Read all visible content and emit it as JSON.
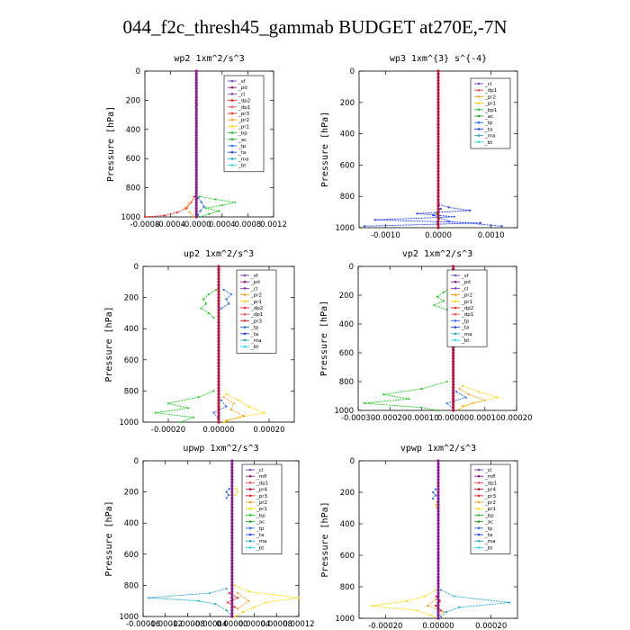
{
  "title": "044_f2c_thresh45_gammab  BUDGET at270E,-7N",
  "chart_data": [
    {
      "type": "line",
      "title": "wp2   1xm^2/s^3",
      "ylabel": "Pressure [hPa]",
      "xlim": [
        -0.0008,
        0.0012
      ],
      "ylim": [
        0,
        1000
      ],
      "xticks": [
        "-0.0008",
        "-0.0004",
        "-0.0000",
        "0.0004",
        "0.0008",
        "0.0012"
      ],
      "xtick_values": [
        -0.0008,
        -0.0004,
        0,
        0.0004,
        0.0008,
        0.0012
      ],
      "yticks": [
        "0",
        "200",
        "400",
        "600",
        "800",
        "1000"
      ],
      "legend": [
        "_sf",
        "_pd",
        "_cl",
        "_dp2",
        "_dp1",
        "_pr3",
        "_pr2",
        "_pr1",
        "_bp",
        "_ac",
        "_tp",
        "_ta",
        "_ma",
        "_bt"
      ],
      "legend_position": "top-right",
      "series": [
        {
          "name": "_pr3",
          "color": "#ff2020",
          "y": [
            860,
            900,
            940,
            970,
            990,
            1000
          ],
          "x": [
            -3e-05,
            -8e-05,
            -0.00015,
            -0.0003,
            -0.0005,
            -0.0008
          ]
        },
        {
          "name": "_pr1",
          "color": "#22cc22",
          "y": [
            860,
            880,
            900,
            920,
            940,
            960,
            980,
            1000
          ],
          "x": [
            5e-05,
            0.0003,
            0.0006,
            0.0004,
            0.00015,
            0.00035,
            0.0002,
            5e-05
          ]
        },
        {
          "name": "_bp",
          "color": "#ff9f1a",
          "y": [
            880,
            910,
            940,
            970,
            1000
          ],
          "x": [
            -5e-05,
            -0.00012,
            -0.00018,
            -0.0001,
            -4e-05
          ]
        },
        {
          "name": "_tp",
          "color": "#1f6fff",
          "y": [
            870,
            900,
            930,
            960,
            990
          ],
          "x": [
            3e-05,
            8e-05,
            0.00012,
            6e-05,
            2e-05
          ]
        },
        {
          "name": "_dp1",
          "color": "#ff4f4f",
          "y": [
            200,
            215,
            230,
            245,
            260
          ],
          "x": [
            1e-05,
            -1e-05,
            1e-05,
            -1e-05,
            0.0
          ]
        }
      ]
    },
    {
      "type": "line",
      "title": "wp3   1xm^{3} s^{-4}",
      "ylabel": "Pressure [hPa]",
      "xlim": [
        -0.0015,
        0.0015
      ],
      "ylim": [
        0,
        1000
      ],
      "xticks": [
        "-0.0010",
        "0.0000",
        "0.0010"
      ],
      "xtick_values": [
        -0.001,
        0,
        0.001
      ],
      "yticks": [
        "0",
        "200",
        "400",
        "600",
        "800",
        "1000"
      ],
      "legend": [
        "_cl",
        "_dp1",
        "_pr2",
        "_pr1",
        "_bp1",
        "_ac",
        "_tp",
        "_ta",
        "_ma",
        "_bt"
      ],
      "legend_position": "top-right",
      "series": [
        {
          "name": "_tp",
          "color": "#1f3fff",
          "y": [
            850,
            870,
            890,
            910,
            930,
            950,
            970,
            990
          ],
          "x": [
            0.0,
            0.0002,
            0.0006,
            -0.0004,
            0.0003,
            -0.0012,
            0.0008,
            -0.0014
          ]
        },
        {
          "name": "_ta",
          "color": "#2244ff",
          "y": [
            880,
            920,
            960,
            990
          ],
          "x": [
            5e-05,
            -0.0001,
            0.0002,
            0.0012
          ]
        },
        {
          "name": "_bp1",
          "color": "#22cc22",
          "y": [
            880,
            910,
            940,
            970
          ],
          "x": [
            2e-05,
            -3e-05,
            3e-05,
            -2e-05
          ]
        }
      ]
    },
    {
      "type": "line",
      "title": "up2   1xm^2/s^3",
      "ylabel": "Pressure [hPa]",
      "xlim": [
        -0.0003,
        0.0003
      ],
      "ylim": [
        0,
        1000
      ],
      "xticks": [
        "-0.00020",
        "0.00000",
        "0.00020"
      ],
      "xtick_values": [
        -0.0002,
        0,
        0.0002
      ],
      "yticks": [
        "0",
        "200",
        "400",
        "600",
        "800",
        "1000"
      ],
      "legend": [
        "_sf",
        "_pd",
        "_cl",
        "_pr2",
        "_pr1",
        "_dp2",
        "_dp1",
        "_pr3",
        "_tp",
        "_ta",
        "_ma",
        "_bt"
      ],
      "legend_position": "top-right",
      "series": [
        {
          "name": "_dp1",
          "color": "#22cc22",
          "y": [
            150,
            180,
            210,
            240,
            270,
            300,
            330
          ],
          "x": [
            -1e-05,
            -4e-05,
            -6e-05,
            -5e-05,
            -7e-05,
            -4e-05,
            -2e-05
          ]
        },
        {
          "name": "_tp",
          "color": "#1f6fff",
          "y": [
            150,
            180,
            210,
            240,
            270
          ],
          "x": [
            2e-05,
            5e-05,
            3e-05,
            4e-05,
            1e-05
          ]
        },
        {
          "name": "_dp2",
          "color": "#22cc22",
          "y": [
            800,
            840,
            880,
            910,
            940,
            970,
            1000
          ],
          "x": [
            -2e-05,
            -8e-05,
            -0.0002,
            -0.00012,
            -0.00025,
            -0.0001,
            -0.00015
          ]
        },
        {
          "name": "_pr2",
          "color": "#ffd500",
          "y": [
            820,
            860,
            900,
            940,
            970,
            1000
          ],
          "x": [
            3e-05,
            8e-05,
            0.00012,
            0.00018,
            8e-05,
            2e-05
          ]
        },
        {
          "name": "_pr1",
          "color": "#ff9f1a",
          "y": [
            840,
            880,
            920,
            960,
            990
          ],
          "x": [
            2e-05,
            6e-05,
            5e-05,
            0.0001,
            3e-05
          ]
        },
        {
          "name": "_ta",
          "color": "#1f6fff",
          "y": [
            860,
            900,
            940,
            980
          ],
          "x": [
            1e-05,
            3e-05,
            -2e-05,
            0.0
          ]
        }
      ]
    },
    {
      "type": "line",
      "title": "vp2   1xm^2/s^3",
      "ylabel": "Pressure [hPa]",
      "xlim": [
        -0.0003,
        0.0002
      ],
      "ylim": [
        0,
        1000
      ],
      "xticks": [
        "-0.00030",
        "-0.00020",
        "-0.00010",
        "0.00000",
        "0.00010",
        "0.00020"
      ],
      "xtick_values": [
        -0.0003,
        -0.0002,
        -0.0001,
        0,
        0.0001,
        0.0002
      ],
      "yticks": [
        "0",
        "200",
        "400",
        "600",
        "800",
        "1000"
      ],
      "legend": [
        "_sf",
        "_pd",
        "_cl",
        "_pr2",
        "_pr1",
        "_dp2",
        "_dp1",
        "_tp",
        "_ta",
        "_ma",
        "_bt"
      ],
      "legend_position": "top-right",
      "series": [
        {
          "name": "_dp1",
          "color": "#22cc22",
          "y": [
            150,
            180,
            210,
            240,
            270,
            300
          ],
          "x": [
            -1e-05,
            -3e-05,
            -5e-05,
            -3e-05,
            -6e-05,
            -2e-05
          ]
        },
        {
          "name": "_tp",
          "color": "#1f6fff",
          "y": [
            150,
            180,
            210,
            240,
            270
          ],
          "x": [
            1e-05,
            3e-05,
            2e-05,
            4e-05,
            1e-05
          ]
        },
        {
          "name": "_dp2",
          "color": "#22cc22",
          "y": [
            800,
            850,
            890,
            920,
            950,
            980,
            1000
          ],
          "x": [
            -2e-05,
            -0.0001,
            -0.00022,
            -0.00014,
            -0.00028,
            -0.0001,
            -5e-05
          ]
        },
        {
          "name": "_pr2",
          "color": "#ffd500",
          "y": [
            830,
            870,
            910,
            950,
            990
          ],
          "x": [
            3e-05,
            8e-05,
            0.00014,
            6e-05,
            2e-05
          ]
        },
        {
          "name": "_pr1",
          "color": "#ff9f1a",
          "y": [
            850,
            890,
            930,
            970
          ],
          "x": [
            2e-05,
            5e-05,
            0.0001,
            3e-05
          ]
        },
        {
          "name": "_ta",
          "color": "#1f6fff",
          "y": [
            870,
            910,
            950,
            990
          ],
          "x": [
            1e-05,
            4e-05,
            -2e-05,
            0.0
          ]
        }
      ]
    },
    {
      "type": "line",
      "title": "upwp   1xm^2/s^3",
      "ylabel": "Pressure [hPa]",
      "xlim": [
        -0.00016,
        0.00012
      ],
      "ylim": [
        0,
        1000
      ],
      "xticks": [
        "-0.00016",
        "-0.00012",
        "-0.00008",
        "-0.00004",
        "0.00000",
        "0.00004",
        "0.00008",
        "0.00012"
      ],
      "xtick_values": [
        -0.00016,
        -0.00012,
        -8e-05,
        -4e-05,
        0,
        4e-05,
        8e-05,
        0.00012
      ],
      "yticks": [
        "0",
        "200",
        "400",
        "600",
        "800",
        "1000"
      ],
      "legend": [
        "_cl",
        "_mfl",
        "_dp1",
        "_pr4",
        "_pr3",
        "_pr2",
        "_pr1",
        "_bp",
        "_ac",
        "_tp",
        "_ta",
        "_ma",
        "_bt"
      ],
      "legend_position": "top-right",
      "series": [
        {
          "name": "_tp",
          "color": "#1f6fff",
          "y": [
            180,
            200,
            220,
            240
          ],
          "x": [
            -5e-06,
            -1e-05,
            -6e-06,
            -1e-05
          ]
        },
        {
          "name": "_pr2",
          "color": "#ffd500",
          "y": [
            180,
            200,
            220
          ],
          "x": [
            8e-06,
            1e-05,
            6e-06
          ]
        },
        {
          "name": "_ta",
          "color": "#22aacc",
          "y": [
            820,
            850,
            880,
            900,
            920,
            960,
            1000
          ],
          "x": [
            -1e-05,
            -4e-05,
            -0.00015,
            -6e-05,
            -3e-05,
            -1e-05,
            0.0
          ]
        },
        {
          "name": "_pr1",
          "color": "#ffd500",
          "y": [
            800,
            840,
            880,
            910,
            940,
            970,
            1000
          ],
          "x": [
            5e-06,
            3e-05,
            0.00012,
            6e-05,
            4e-05,
            2e-05,
            5e-06
          ]
        },
        {
          "name": "_bp",
          "color": "#ff9f1a",
          "y": [
            850,
            900,
            950
          ],
          "x": [
            1e-05,
            3e-05,
            1e-05
          ]
        },
        {
          "name": "_dp1",
          "color": "#ff2020",
          "y": [
            850,
            880,
            910,
            940
          ],
          "x": [
            -5e-06,
            1e-05,
            -8e-06,
            5e-06
          ]
        }
      ]
    },
    {
      "type": "line",
      "title": "vpwp   1xm^2/s^3",
      "ylabel": "Pressure [hPa]",
      "xlim": [
        -0.0003,
        0.0003
      ],
      "ylim": [
        0,
        1000
      ],
      "xticks": [
        "-0.00020",
        "0.00000",
        "0.00020"
      ],
      "xtick_values": [
        -0.0002,
        0,
        0.0002
      ],
      "yticks": [
        "0",
        "200",
        "400",
        "600",
        "800",
        "1000"
      ],
      "legend": [
        "_cl",
        "_mfl",
        "_dp1",
        "_pr4",
        "_pr3",
        "_pr2",
        "_pr1",
        "_bp",
        "_ac",
        "_tp",
        "_ta",
        "_ma",
        "_bt"
      ],
      "legend_position": "top-right",
      "series": [
        {
          "name": "_tp",
          "color": "#1f6fff",
          "y": [
            180,
            200,
            220,
            240
          ],
          "x": [
            -1e-05,
            -2e-05,
            -1e-05,
            -2e-05
          ]
        },
        {
          "name": "_pr2",
          "color": "#ffd500",
          "y": [
            260,
            280,
            300
          ],
          "x": [
            -5e-06,
            -1e-05,
            -5e-06
          ]
        },
        {
          "name": "_pr1",
          "color": "#ffd500",
          "y": [
            820,
            860,
            890,
            920,
            950,
            980,
            1000
          ],
          "x": [
            -1e-05,
            -5e-05,
            -0.00012,
            -0.00025,
            -8e-05,
            -3e-05,
            0.0
          ]
        },
        {
          "name": "_ta",
          "color": "#22aacc",
          "y": [
            820,
            860,
            900,
            930,
            960,
            990
          ],
          "x": [
            1e-05,
            6e-05,
            0.00027,
            8e-05,
            3e-05,
            1e-05
          ]
        },
        {
          "name": "_bp",
          "color": "#ff9f1a",
          "y": [
            880,
            920,
            960,
            990
          ],
          "x": [
            -1e-05,
            -4e-05,
            2e-05,
            0.0
          ]
        },
        {
          "name": "_dp1",
          "color": "#ff2020",
          "y": [
            860,
            890,
            920,
            950
          ],
          "x": [
            -8e-06,
            6e-06,
            -1e-05,
            1e-05
          ]
        }
      ]
    }
  ]
}
